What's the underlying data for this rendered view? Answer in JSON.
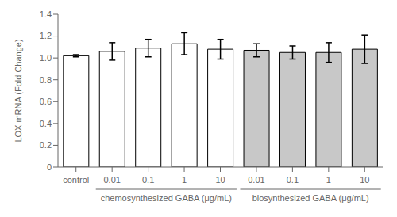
{
  "chart_data": {
    "type": "bar",
    "categories": [
      "control",
      "0.01",
      "0.1",
      "1",
      "10",
      "0.01",
      "0.1",
      "1",
      "10"
    ],
    "values": [
      1.02,
      1.06,
      1.09,
      1.13,
      1.08,
      1.07,
      1.05,
      1.05,
      1.08
    ],
    "errors": [
      0.01,
      0.08,
      0.08,
      0.1,
      0.09,
      0.06,
      0.06,
      0.09,
      0.13
    ],
    "colors": [
      "#ffffff",
      "#ffffff",
      "#ffffff",
      "#ffffff",
      "#ffffff",
      "#c8c8c8",
      "#c8c8c8",
      "#c8c8c8",
      "#c8c8c8"
    ],
    "ylabel": "LOX mRNA (Fold Change)",
    "ylim": [
      0,
      1.4
    ],
    "yticks": [
      0,
      0.2,
      0.4,
      0.6,
      0.8,
      {
        "value": 1.0,
        "label": "1.0"
      },
      1.2,
      1.4
    ],
    "groups": [
      {
        "label": "chemosynthesized GABA (μg/mL)",
        "from": 1,
        "to": 4
      },
      {
        "label": "biosynthesized GABA (μg/mL)",
        "from": 5,
        "to": 8
      }
    ],
    "grid": false
  }
}
